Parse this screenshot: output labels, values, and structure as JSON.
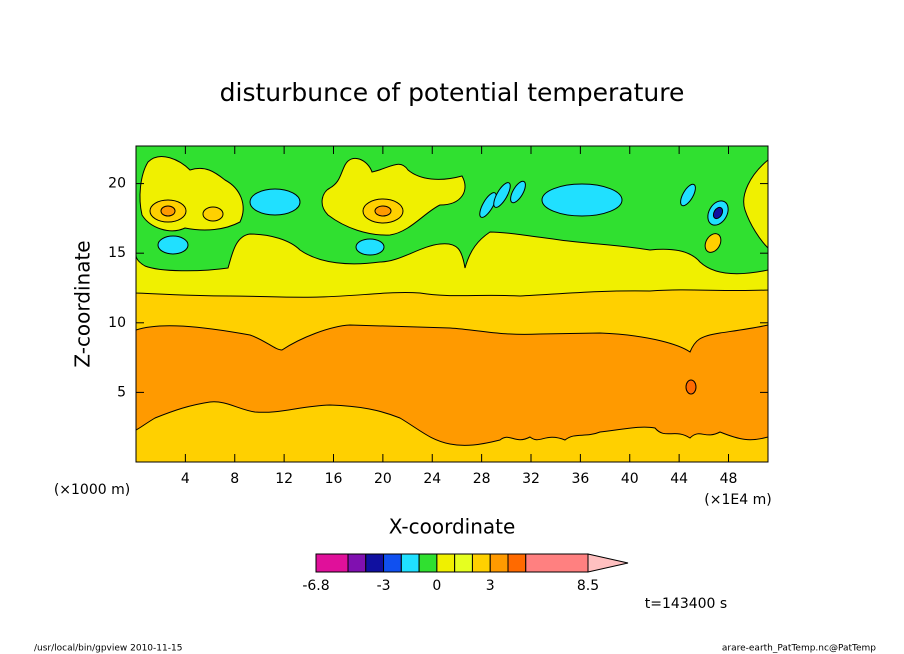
{
  "chart_data": {
    "type": "contour",
    "title": "disturbunce of potential temperature",
    "xlabel": "X-coordinate",
    "ylabel": "Z-coordinate",
    "xunit": "(×1E4 m)",
    "yunit": "(×1000 m)",
    "xlim": [
      0,
      51.2
    ],
    "ylim": [
      0,
      22.7
    ],
    "xticks": [
      4,
      8,
      12,
      16,
      20,
      24,
      28,
      32,
      36,
      40,
      44,
      48
    ],
    "yticks": [
      5,
      10,
      15,
      20
    ],
    "colorbar": {
      "levels": [
        -6.8,
        -5,
        -4,
        -3,
        -2,
        -1,
        0,
        1,
        2,
        3,
        4,
        5,
        8.5
      ],
      "colors": [
        "#e0109a",
        "#8010b0",
        "#1010a0",
        "#1050f0",
        "#20e0ff",
        "#30e030",
        "#f0f000",
        "#e6ff20",
        "#ffd000",
        "#ff9a00",
        "#ff6a00",
        "#ff8080"
      ],
      "extend_color": "#ffc0c0",
      "ticks": [
        -6.8,
        -3,
        0,
        3,
        8.5
      ]
    },
    "time_label": "t=143400 s",
    "footer_left": "/usr/local/bin/gpview  2010-11-15",
    "footer_right": "arare-earth_PatTemp.nc@PatTemp"
  }
}
